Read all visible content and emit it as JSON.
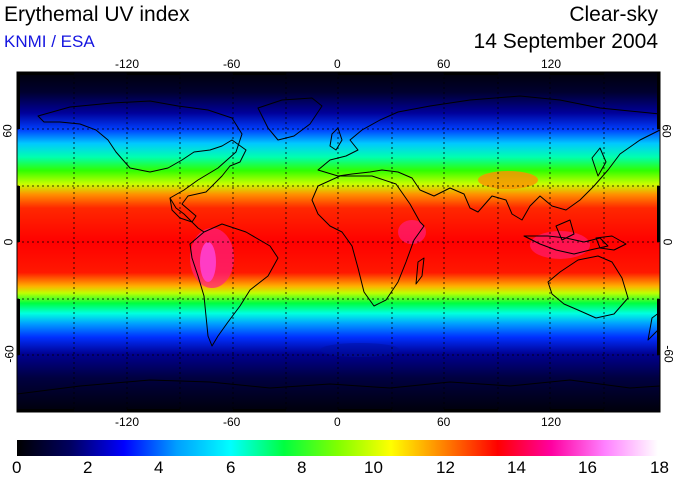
{
  "header": {
    "title": "Erythemal UV index",
    "credit": "KNMI / ESA",
    "sky_condition": "Clear-sky",
    "date": "14 September 2004"
  },
  "map": {
    "projection": "equirectangular",
    "lon_range": [
      -180,
      180
    ],
    "lat_range": [
      -90,
      90
    ],
    "lon_ticks": [
      "-120",
      "-60",
      "0",
      "60",
      "120"
    ],
    "lat_ticks": [
      "60",
      "0",
      "-60"
    ],
    "gridlines": "dashed every 30 degrees",
    "field": "erythemal UV index, clear-sky, global daily map"
  },
  "colorbar": {
    "min": 0,
    "max": 18,
    "labels": [
      "0",
      "2",
      "4",
      "6",
      "8",
      "10",
      "12",
      "14",
      "16",
      "18"
    ],
    "stops": [
      "#000000",
      "#000060",
      "#0000ff",
      "#00a0ff",
      "#00ffff",
      "#00ff40",
      "#80ff00",
      "#ffff00",
      "#ff8000",
      "#ff0000",
      "#ff00a0",
      "#ff80ff",
      "#ffffff"
    ]
  },
  "colors": {
    "credit": "#1515e0",
    "ocean_high_lat": "#000033",
    "peak_uv": "#ff30c0"
  }
}
